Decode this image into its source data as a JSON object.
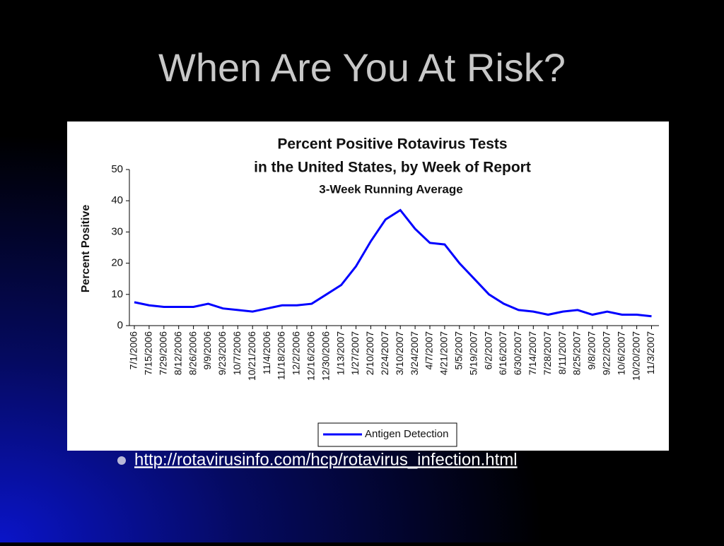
{
  "slide": {
    "title": "When Are You At Risk?",
    "link": "http://rotavirusinfo.com/hcp/rotavirus_infection.html"
  },
  "chart_data": {
    "type": "line",
    "title": "Percent Positive Rotavirus Tests",
    "subtitle": "in the United States, by Week of Report",
    "note": "3-Week Running Average",
    "y_label": "Percent Positive",
    "categories": [
      "7/1/2006",
      "7/15/2006",
      "7/29/2006",
      "8/12/2006",
      "8/26/2006",
      "9/9/2006",
      "9/23/2006",
      "10/7/2006",
      "10/21/2006",
      "11/4/2006",
      "11/18/2006",
      "12/2/2006",
      "12/16/2006",
      "12/30/2006",
      "1/13/2007",
      "1/27/2007",
      "2/10/2007",
      "2/24/2007",
      "3/10/2007",
      "3/24/2007",
      "4/7/2007",
      "4/21/2007",
      "5/5/2007",
      "5/19/2007",
      "6/2/2007",
      "6/16/2007",
      "6/30/2007",
      "7/14/2007",
      "7/28/2007",
      "8/11/2007",
      "8/25/2007",
      "9/8/2007",
      "9/22/2007",
      "10/6/2007",
      "10/20/2007",
      "11/3/2007"
    ],
    "series": [
      {
        "name": "Antigen Detection",
        "color": "#0000ff",
        "values": [
          7.5,
          6.5,
          6,
          6,
          6,
          7,
          5.5,
          5,
          4.5,
          5.5,
          6.5,
          6.5,
          7,
          10,
          13,
          19,
          27,
          34,
          37,
          31,
          26.5,
          26,
          20,
          15,
          10,
          7,
          5,
          4.5,
          3.5,
          4.5,
          5,
          3.5,
          4.5,
          3.5,
          3.5,
          3
        ]
      }
    ],
    "ylim": [
      0,
      50
    ],
    "yticks": [
      0,
      10,
      20,
      30,
      40,
      50
    ],
    "legend": "bottom"
  }
}
